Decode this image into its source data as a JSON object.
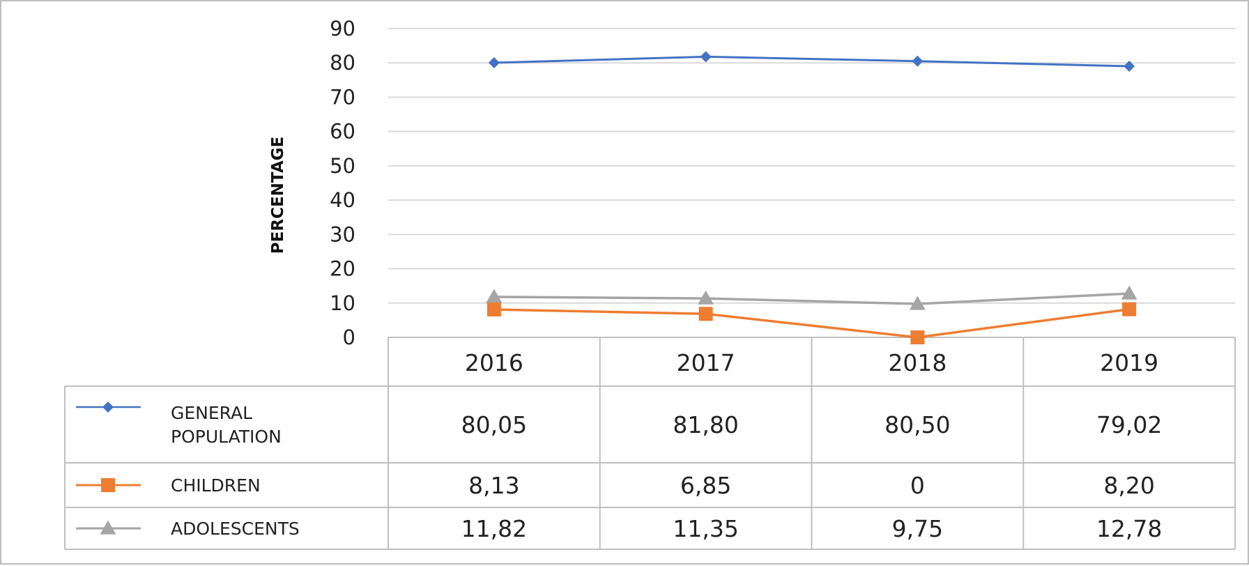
{
  "chart_data": {
    "type": "line",
    "title": "",
    "xlabel": "",
    "ylabel": "PERCENTAGE",
    "ylim": [
      0,
      90
    ],
    "yticks": [
      0,
      10,
      20,
      30,
      40,
      50,
      60,
      70,
      80,
      90
    ],
    "grid": true,
    "legend_placement": "data-table-left",
    "categories": [
      "2016",
      "2017",
      "2018",
      "2019"
    ],
    "series": [
      {
        "name": "GENERAL POPULATION",
        "name_lines": [
          "GENERAL",
          "POPULATION"
        ],
        "marker": "diamond",
        "color": "#4472C4",
        "values": [
          80.05,
          81.8,
          80.5,
          79.02
        ],
        "labels": [
          "80,05",
          "81,80",
          "80,50",
          "79,02"
        ]
      },
      {
        "name": "CHILDREN",
        "name_lines": [
          "CHILDREN"
        ],
        "marker": "square",
        "color": "#ED7D31",
        "values": [
          8.13,
          6.85,
          0,
          8.2
        ],
        "labels": [
          "8,13",
          "6,85",
          "0",
          "8,20"
        ]
      },
      {
        "name": "ADOLESCENTS",
        "name_lines": [
          "ADOLESCENTS"
        ],
        "marker": "triangle",
        "color": "#A5A5A5",
        "values": [
          11.82,
          11.35,
          9.75,
          12.78
        ],
        "labels": [
          "11,82",
          "11,35",
          "9,75",
          "12,78"
        ]
      }
    ]
  }
}
